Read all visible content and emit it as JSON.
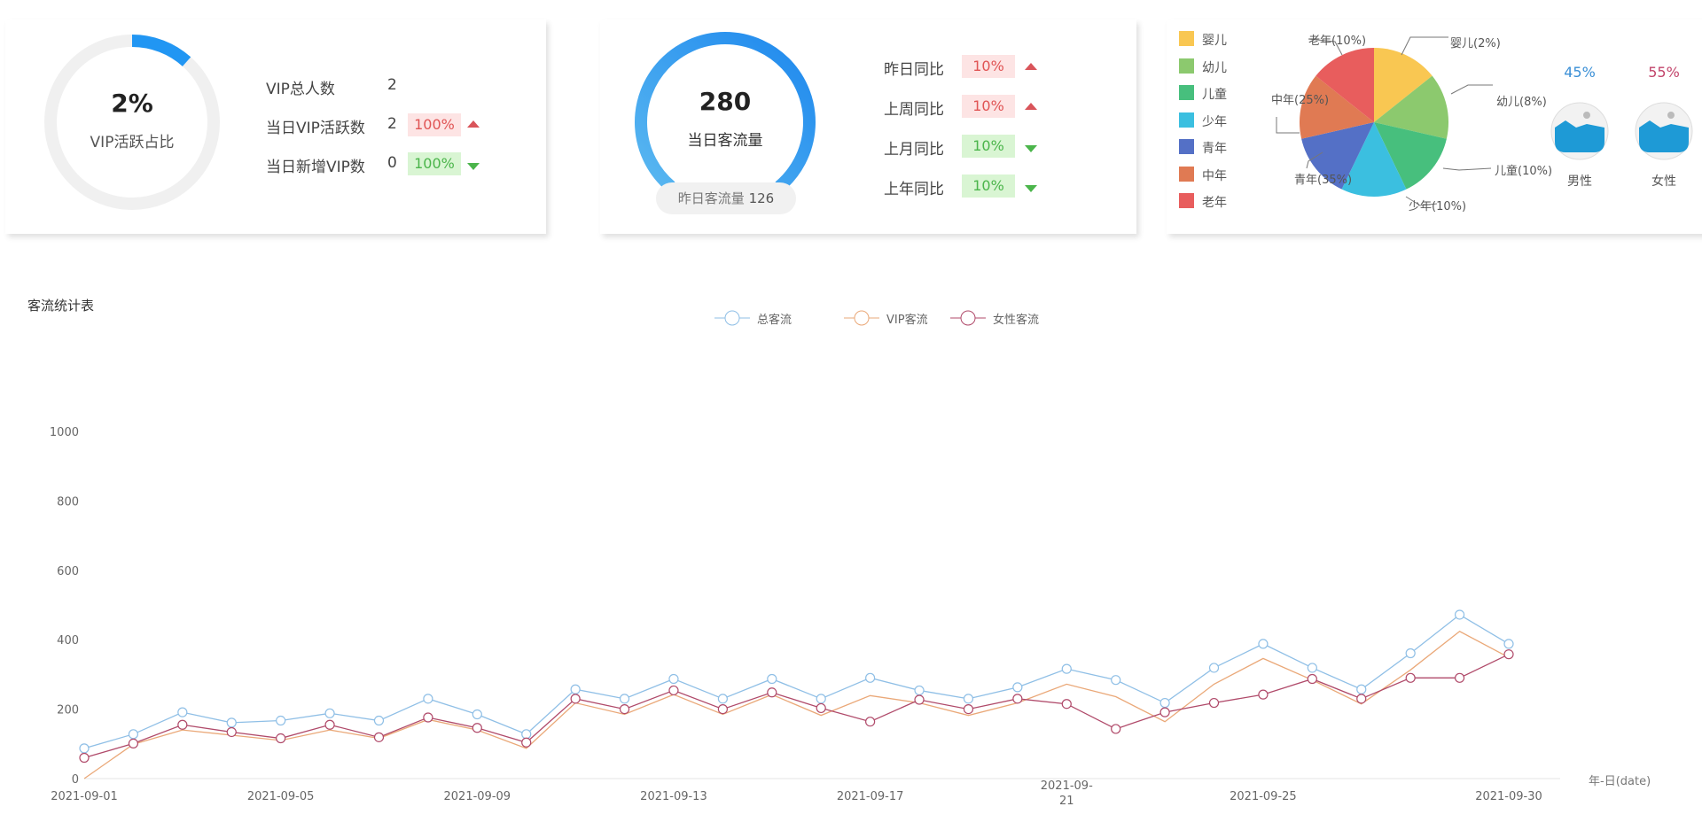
{
  "vip_panel": {
    "ratio_value": "2%",
    "ratio_fraction": 0.02,
    "ratio_label": "VIP活跃占比",
    "stats": [
      {
        "label": "VIP总人数",
        "value": "2"
      },
      {
        "label": "当日VIP活跃数",
        "value": "2",
        "badge": "100%",
        "trend": "up"
      },
      {
        "label": "当日新增VIP数",
        "value": "0",
        "badge": "100%",
        "trend": "down"
      }
    ]
  },
  "traffic_panel": {
    "value": "280",
    "label": "当日客流量",
    "yesterday_label": "昨日客流量",
    "yesterday_value": "126",
    "comparisons": [
      {
        "label": "昨日同比",
        "badge": "10%",
        "trend": "up"
      },
      {
        "label": "上周同比",
        "badge": "10%",
        "trend": "up"
      },
      {
        "label": "上月同比",
        "badge": "10%",
        "trend": "down"
      },
      {
        "label": "上年同比",
        "badge": "10%",
        "trend": "down"
      }
    ]
  },
  "age_panel": {
    "legend": [
      {
        "name": "婴儿",
        "color": "#f9c752",
        "label": "婴儿(2%)"
      },
      {
        "name": "幼儿",
        "color": "#8cc96e",
        "label": "幼儿(8%)"
      },
      {
        "name": "儿童",
        "color": "#47bf7d",
        "label": "儿童(10%)"
      },
      {
        "name": "少年",
        "color": "#3bbfe0",
        "label": "少年(10%)"
      },
      {
        "name": "青年",
        "color": "#5470c6",
        "label": "青年(35%)"
      },
      {
        "name": "中年",
        "color": "#e07a53",
        "label": "中年(25%)"
      },
      {
        "name": "老年",
        "color": "#e85d5d",
        "label": "老年(10%)"
      }
    ],
    "gender": [
      {
        "label": "男性",
        "percent": "45%",
        "color": "#3a8fd6"
      },
      {
        "label": "女性",
        "percent": "55%",
        "color": "#c2456b"
      }
    ]
  },
  "chart_title": "客流统计表",
  "chart_data": {
    "type": "line",
    "xlabel": "年-日(date)",
    "ylim": [
      0,
      1000
    ],
    "yticks": [
      "0",
      "200",
      "400",
      "600",
      "800",
      "1000"
    ],
    "xtick_labels": [
      "2021-09-01",
      "2021-09-05",
      "2021-09-09",
      "2021-09-13",
      "2021-09-17",
      "2021-09-21",
      "2021-09-25",
      "2021-09-30"
    ],
    "x": [
      "2021-09-01",
      "2021-09-02",
      "2021-09-03",
      "2021-09-04",
      "2021-09-05",
      "2021-09-06",
      "2021-09-07",
      "2021-09-08",
      "2021-09-09",
      "2021-09-10",
      "2021-09-11",
      "2021-09-12",
      "2021-09-13",
      "2021-09-14",
      "2021-09-15",
      "2021-09-16",
      "2021-09-17",
      "2021-09-18",
      "2021-09-19",
      "2021-09-20",
      "2021-09-21",
      "2021-09-22",
      "2021-09-23",
      "2021-09-24",
      "2021-09-25",
      "2021-09-26",
      "2021-09-27",
      "2021-09-28",
      "2021-09-29",
      "2021-09-30"
    ],
    "grid": false,
    "legend": "top-center",
    "series": [
      {
        "name": "总客流",
        "color": "#8fbfe6",
        "values": [
          87,
          128,
          191,
          161,
          167,
          188,
          167,
          230,
          185,
          128,
          257,
          230,
          287,
          230,
          287,
          230,
          290,
          254,
          230,
          263,
          316,
          284,
          218,
          319,
          388,
          319,
          257,
          361,
          472,
          388
        ]
      },
      {
        "name": "VIP客流",
        "color": "#eaa878",
        "values": [
          0,
          99,
          140,
          125,
          110,
          140,
          116,
          170,
          140,
          87,
          218,
          185,
          242,
          185,
          242,
          182,
          239,
          218,
          182,
          218,
          272,
          236,
          164,
          272,
          346,
          284,
          215,
          313,
          424,
          349
        ]
      },
      {
        "name": "女性客流",
        "color": "#b04a6a",
        "values": [
          60,
          101,
          155,
          134,
          116,
          155,
          119,
          176,
          146,
          104,
          230,
          200,
          254,
          200,
          248,
          203,
          164,
          227,
          200,
          230,
          215,
          143,
          191,
          218,
          242,
          287,
          230,
          290,
          290,
          358
        ]
      }
    ]
  }
}
